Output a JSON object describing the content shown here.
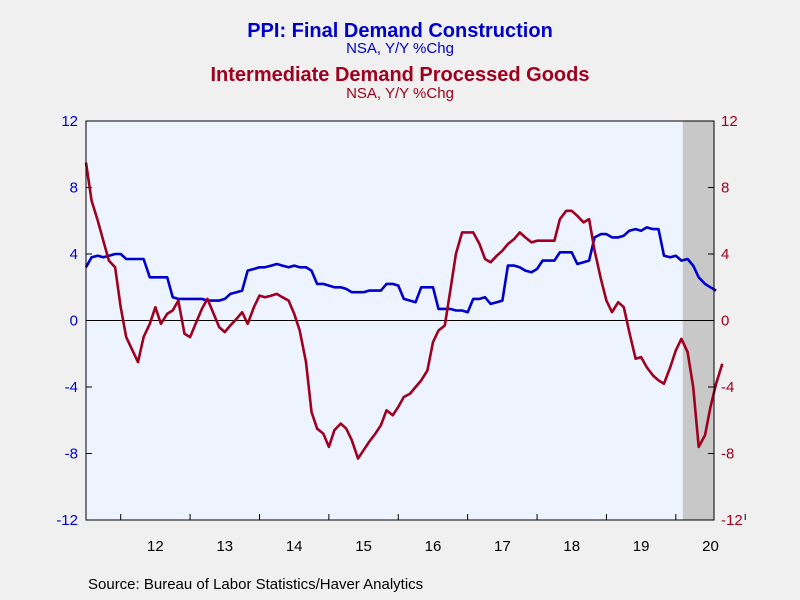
{
  "header": {
    "title1": "PPI: Final Demand Construction",
    "sub1": "NSA, Y/Y %Chg",
    "title2": "Intermediate Demand Processed Goods",
    "sub2": "NSA, Y/Y %Chg"
  },
  "source": "Source:  Bureau of Labor Statistics/Haver Analytics",
  "colors": {
    "construction": "#0000cc",
    "processed_goods": "#a00020",
    "plot_bg": "#eef4ff",
    "shade": "#c8c8c8"
  },
  "chart_data": {
    "type": "line",
    "x_unit": "year (decimal, monthly observations)",
    "xlim": [
      2011.5,
      2020.55
    ],
    "ylim": [
      -12,
      12
    ],
    "yticks": [
      -12,
      -8,
      -4,
      0,
      4,
      8,
      12
    ],
    "y_right_ticks": [
      -12,
      -8,
      -4,
      0,
      4,
      8,
      12
    ],
    "x_tick_labels": [
      "12",
      "13",
      "14",
      "15",
      "16",
      "17",
      "18",
      "19",
      "20"
    ],
    "recession_shade": [
      2020.1,
      2020.55
    ],
    "zero_line": true,
    "grid": false,
    "series": [
      {
        "name": "PPI: Final Demand Construction",
        "axis": "left",
        "points": [
          [
            2011.5,
            3.2
          ],
          [
            2011.58,
            3.8
          ],
          [
            2011.67,
            3.9
          ],
          [
            2011.75,
            3.8
          ],
          [
            2011.83,
            3.9
          ],
          [
            2011.92,
            4.0
          ],
          [
            2012.0,
            4.0
          ],
          [
            2012.08,
            3.7
          ],
          [
            2012.17,
            3.7
          ],
          [
            2012.25,
            3.7
          ],
          [
            2012.33,
            3.7
          ],
          [
            2012.42,
            2.6
          ],
          [
            2012.5,
            2.6
          ],
          [
            2012.58,
            2.6
          ],
          [
            2012.67,
            2.6
          ],
          [
            2012.75,
            1.4
          ],
          [
            2012.83,
            1.3
          ],
          [
            2012.92,
            1.3
          ],
          [
            2013.0,
            1.3
          ],
          [
            2013.08,
            1.3
          ],
          [
            2013.17,
            1.3
          ],
          [
            2013.25,
            1.2
          ],
          [
            2013.33,
            1.2
          ],
          [
            2013.42,
            1.2
          ],
          [
            2013.5,
            1.3
          ],
          [
            2013.58,
            1.6
          ],
          [
            2013.67,
            1.7
          ],
          [
            2013.75,
            1.8
          ],
          [
            2013.83,
            3.0
          ],
          [
            2013.92,
            3.1
          ],
          [
            2014.0,
            3.2
          ],
          [
            2014.08,
            3.2
          ],
          [
            2014.17,
            3.3
          ],
          [
            2014.25,
            3.4
          ],
          [
            2014.33,
            3.3
          ],
          [
            2014.42,
            3.2
          ],
          [
            2014.5,
            3.3
          ],
          [
            2014.58,
            3.2
          ],
          [
            2014.67,
            3.2
          ],
          [
            2014.75,
            3.0
          ],
          [
            2014.83,
            2.2
          ],
          [
            2014.92,
            2.2
          ],
          [
            2015.0,
            2.1
          ],
          [
            2015.08,
            2.0
          ],
          [
            2015.17,
            2.0
          ],
          [
            2015.25,
            1.9
          ],
          [
            2015.33,
            1.7
          ],
          [
            2015.42,
            1.7
          ],
          [
            2015.5,
            1.7
          ],
          [
            2015.58,
            1.8
          ],
          [
            2015.67,
            1.8
          ],
          [
            2015.75,
            1.8
          ],
          [
            2015.83,
            2.2
          ],
          [
            2015.92,
            2.2
          ],
          [
            2016.0,
            2.1
          ],
          [
            2016.08,
            1.3
          ],
          [
            2016.17,
            1.2
          ],
          [
            2016.25,
            1.1
          ],
          [
            2016.33,
            2.0
          ],
          [
            2016.42,
            2.0
          ],
          [
            2016.5,
            2.0
          ],
          [
            2016.58,
            0.7
          ],
          [
            2016.67,
            0.7
          ],
          [
            2016.75,
            0.7
          ],
          [
            2016.83,
            0.6
          ],
          [
            2016.92,
            0.6
          ],
          [
            2017.0,
            0.5
          ],
          [
            2017.08,
            1.3
          ],
          [
            2017.17,
            1.3
          ],
          [
            2017.25,
            1.4
          ],
          [
            2017.33,
            1.0
          ],
          [
            2017.42,
            1.1
          ],
          [
            2017.5,
            1.2
          ],
          [
            2017.58,
            3.3
          ],
          [
            2017.67,
            3.3
          ],
          [
            2017.75,
            3.2
          ],
          [
            2017.83,
            3.0
          ],
          [
            2017.92,
            2.9
          ],
          [
            2018.0,
            3.1
          ],
          [
            2018.08,
            3.6
          ],
          [
            2018.17,
            3.6
          ],
          [
            2018.25,
            3.6
          ],
          [
            2018.33,
            4.1
          ],
          [
            2018.42,
            4.1
          ],
          [
            2018.5,
            4.1
          ],
          [
            2018.58,
            3.4
          ],
          [
            2018.67,
            3.5
          ],
          [
            2018.75,
            3.6
          ],
          [
            2018.83,
            5.0
          ],
          [
            2018.92,
            5.2
          ],
          [
            2019.0,
            5.2
          ],
          [
            2019.08,
            5.0
          ],
          [
            2019.17,
            5.0
          ],
          [
            2019.25,
            5.1
          ],
          [
            2019.33,
            5.4
          ],
          [
            2019.42,
            5.5
          ],
          [
            2019.5,
            5.4
          ],
          [
            2019.58,
            5.6
          ],
          [
            2019.67,
            5.5
          ],
          [
            2019.75,
            5.5
          ],
          [
            2019.83,
            3.9
          ],
          [
            2019.92,
            3.8
          ],
          [
            2020.0,
            3.9
          ],
          [
            2020.08,
            3.6
          ],
          [
            2020.17,
            3.7
          ],
          [
            2020.25,
            3.3
          ],
          [
            2020.33,
            2.6
          ],
          [
            2020.42,
            2.2
          ],
          [
            2020.5,
            2.0
          ],
          [
            2020.58,
            1.8
          ]
        ]
      },
      {
        "name": "Intermediate Demand Processed Goods",
        "axis": "right",
        "points": [
          [
            2011.5,
            9.5
          ],
          [
            2011.58,
            7.2
          ],
          [
            2011.67,
            6.0
          ],
          [
            2011.75,
            4.8
          ],
          [
            2011.83,
            3.6
          ],
          [
            2011.92,
            3.2
          ],
          [
            2012.0,
            0.8
          ],
          [
            2012.08,
            -1.0
          ],
          [
            2012.17,
            -1.8
          ],
          [
            2012.25,
            -2.5
          ],
          [
            2012.33,
            -1.0
          ],
          [
            2012.42,
            -0.2
          ],
          [
            2012.5,
            0.8
          ],
          [
            2012.58,
            -0.2
          ],
          [
            2012.67,
            0.4
          ],
          [
            2012.75,
            0.6
          ],
          [
            2012.83,
            1.2
          ],
          [
            2012.92,
            -0.8
          ],
          [
            2013.0,
            -1.0
          ],
          [
            2013.08,
            -0.2
          ],
          [
            2013.17,
            0.7
          ],
          [
            2013.25,
            1.3
          ],
          [
            2013.33,
            0.5
          ],
          [
            2013.42,
            -0.4
          ],
          [
            2013.5,
            -0.7
          ],
          [
            2013.58,
            -0.3
          ],
          [
            2013.67,
            0.1
          ],
          [
            2013.75,
            0.5
          ],
          [
            2013.83,
            -0.2
          ],
          [
            2013.92,
            0.8
          ],
          [
            2014.0,
            1.5
          ],
          [
            2014.08,
            1.4
          ],
          [
            2014.17,
            1.5
          ],
          [
            2014.25,
            1.6
          ],
          [
            2014.33,
            1.4
          ],
          [
            2014.42,
            1.2
          ],
          [
            2014.5,
            0.4
          ],
          [
            2014.58,
            -0.6
          ],
          [
            2014.67,
            -2.5
          ],
          [
            2014.75,
            -5.5
          ],
          [
            2014.83,
            -6.5
          ],
          [
            2014.92,
            -6.8
          ],
          [
            2015.0,
            -7.6
          ],
          [
            2015.08,
            -6.6
          ],
          [
            2015.17,
            -6.2
          ],
          [
            2015.25,
            -6.5
          ],
          [
            2015.33,
            -7.2
          ],
          [
            2015.42,
            -8.3
          ],
          [
            2015.5,
            -7.8
          ],
          [
            2015.58,
            -7.3
          ],
          [
            2015.67,
            -6.8
          ],
          [
            2015.75,
            -6.3
          ],
          [
            2015.83,
            -5.4
          ],
          [
            2015.92,
            -5.7
          ],
          [
            2016.0,
            -5.2
          ],
          [
            2016.08,
            -4.6
          ],
          [
            2016.17,
            -4.4
          ],
          [
            2016.25,
            -4.0
          ],
          [
            2016.33,
            -3.6
          ],
          [
            2016.42,
            -3.0
          ],
          [
            2016.5,
            -1.3
          ],
          [
            2016.58,
            -0.6
          ],
          [
            2016.67,
            -0.3
          ],
          [
            2016.75,
            1.8
          ],
          [
            2016.83,
            4.0
          ],
          [
            2016.92,
            5.3
          ],
          [
            2017.0,
            5.3
          ],
          [
            2017.08,
            5.3
          ],
          [
            2017.17,
            4.6
          ],
          [
            2017.25,
            3.7
          ],
          [
            2017.33,
            3.5
          ],
          [
            2017.42,
            3.9
          ],
          [
            2017.5,
            4.2
          ],
          [
            2017.58,
            4.6
          ],
          [
            2017.67,
            4.9
          ],
          [
            2017.75,
            5.3
          ],
          [
            2017.83,
            5.0
          ],
          [
            2017.92,
            4.7
          ],
          [
            2018.0,
            4.8
          ],
          [
            2018.08,
            4.8
          ],
          [
            2018.17,
            4.8
          ],
          [
            2018.25,
            4.8
          ],
          [
            2018.33,
            6.1
          ],
          [
            2018.42,
            6.6
          ],
          [
            2018.5,
            6.6
          ],
          [
            2018.58,
            6.3
          ],
          [
            2018.67,
            5.9
          ],
          [
            2018.75,
            6.1
          ],
          [
            2018.83,
            4.2
          ],
          [
            2018.92,
            2.5
          ],
          [
            2019.0,
            1.2
          ],
          [
            2019.08,
            0.5
          ],
          [
            2019.17,
            1.1
          ],
          [
            2019.25,
            0.8
          ],
          [
            2019.33,
            -0.7
          ],
          [
            2019.42,
            -2.3
          ],
          [
            2019.5,
            -2.2
          ],
          [
            2019.58,
            -2.8
          ],
          [
            2019.67,
            -3.3
          ],
          [
            2019.75,
            -3.6
          ],
          [
            2019.83,
            -3.8
          ],
          [
            2019.92,
            -2.8
          ],
          [
            2020.0,
            -1.8
          ],
          [
            2020.08,
            -1.1
          ],
          [
            2020.17,
            -1.9
          ],
          [
            2020.25,
            -4.0
          ],
          [
            2020.33,
            -7.6
          ],
          [
            2020.42,
            -6.9
          ],
          [
            2020.5,
            -5.2
          ],
          [
            2020.58,
            -3.8
          ],
          [
            2020.67,
            -2.6
          ]
        ]
      }
    ]
  }
}
